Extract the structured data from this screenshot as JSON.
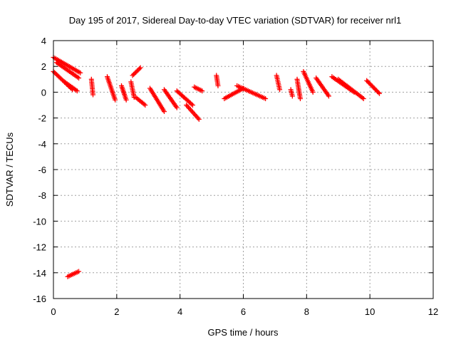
{
  "chart_data": {
    "type": "scatter",
    "title": "Day 195 of 2017, Sidereal Day-to-day VTEC variation (SDTVAR) for receiver nrl1",
    "xlabel": "GPS time / hours",
    "ylabel": "SDTVAR / TECUs",
    "xlim": [
      0,
      12
    ],
    "ylim": [
      -16,
      4
    ],
    "xticks": [
      0,
      2,
      4,
      6,
      8,
      10,
      12
    ],
    "yticks": [
      -16,
      -14,
      -12,
      -10,
      -8,
      -6,
      -4,
      -2,
      0,
      2,
      4
    ],
    "grid": true,
    "marker": "plus",
    "color": "#ff0000",
    "segments": [
      {
        "x": [
          0.0,
          0.85
        ],
        "y": [
          2.7,
          1.5
        ]
      },
      {
        "x": [
          0.1,
          0.8
        ],
        "y": [
          2.3,
          1.1
        ]
      },
      {
        "x": [
          0.0,
          0.6
        ],
        "y": [
          1.6,
          0.2
        ]
      },
      {
        "x": [
          0.35,
          0.75
        ],
        "y": [
          0.8,
          0.1
        ]
      },
      {
        "x": [
          0.45,
          0.8
        ],
        "y": [
          -14.3,
          -13.9
        ]
      },
      {
        "x": [
          1.2,
          1.25
        ],
        "y": [
          1.0,
          -0.2
        ]
      },
      {
        "x": [
          1.7,
          1.95
        ],
        "y": [
          1.2,
          -0.6
        ]
      },
      {
        "x": [
          2.15,
          2.3
        ],
        "y": [
          0.5,
          -0.6
        ]
      },
      {
        "x": [
          2.45,
          2.55
        ],
        "y": [
          0.8,
          -0.4
        ]
      },
      {
        "x": [
          2.5,
          2.75
        ],
        "y": [
          1.3,
          1.9
        ]
      },
      {
        "x": [
          2.6,
          2.9
        ],
        "y": [
          -0.4,
          -1.0
        ]
      },
      {
        "x": [
          3.05,
          3.5
        ],
        "y": [
          0.3,
          -1.5
        ]
      },
      {
        "x": [
          3.5,
          3.9
        ],
        "y": [
          0.2,
          -1.2
        ]
      },
      {
        "x": [
          3.9,
          4.4
        ],
        "y": [
          0.1,
          -1.0
        ]
      },
      {
        "x": [
          4.2,
          4.6
        ],
        "y": [
          -1.0,
          -2.1
        ]
      },
      {
        "x": [
          4.45,
          4.7
        ],
        "y": [
          0.4,
          0.1
        ]
      },
      {
        "x": [
          5.15,
          5.2
        ],
        "y": [
          1.3,
          0.5
        ]
      },
      {
        "x": [
          5.4,
          6.0
        ],
        "y": [
          -0.5,
          0.3
        ]
      },
      {
        "x": [
          5.8,
          6.7
        ],
        "y": [
          0.5,
          -0.5
        ]
      },
      {
        "x": [
          7.05,
          7.15
        ],
        "y": [
          1.3,
          0.2
        ]
      },
      {
        "x": [
          7.5,
          7.55
        ],
        "y": [
          0.2,
          -0.3
        ]
      },
      {
        "x": [
          7.7,
          7.8
        ],
        "y": [
          1.0,
          -0.5
        ]
      },
      {
        "x": [
          7.9,
          8.2
        ],
        "y": [
          1.6,
          0.0
        ]
      },
      {
        "x": [
          8.3,
          8.7
        ],
        "y": [
          1.1,
          -0.3
        ]
      },
      {
        "x": [
          8.8,
          9.5
        ],
        "y": [
          1.2,
          0.0
        ]
      },
      {
        "x": [
          9.0,
          9.8
        ],
        "y": [
          1.0,
          -0.5
        ]
      },
      {
        "x": [
          9.9,
          10.3
        ],
        "y": [
          0.9,
          -0.1
        ]
      }
    ]
  }
}
